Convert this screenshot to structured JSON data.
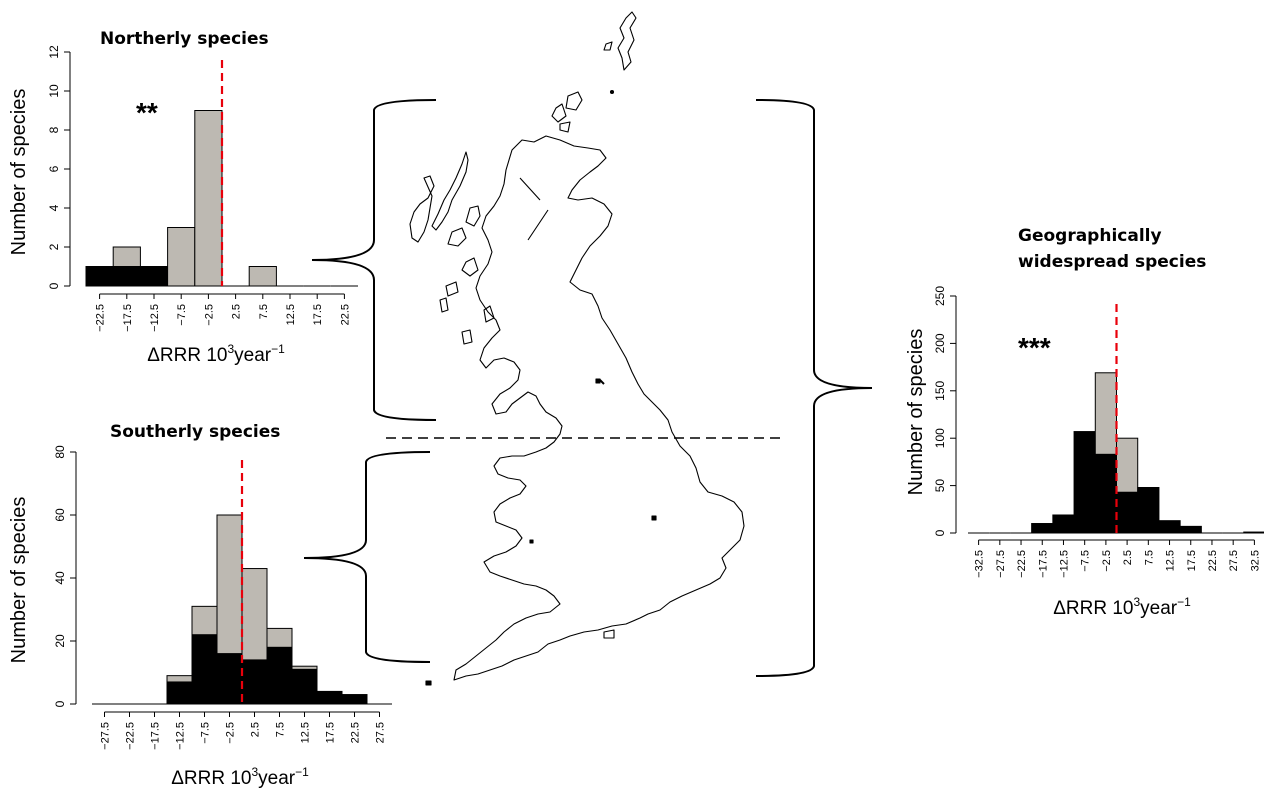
{
  "chart_data": [
    {
      "id": "northerly",
      "type": "bar",
      "title": "Northerly species",
      "ylabel": "Number of species",
      "xlabel": "ΔRRR 10",
      "xlabel_exp": "3",
      "xlabel_unit": "year",
      "xlabel_unit_exp": "−1",
      "annotation": "**",
      "xlim": [
        -25,
        25
      ],
      "ylim": [
        0,
        12
      ],
      "yticks": [
        0,
        2,
        4,
        6,
        8,
        10,
        12
      ],
      "xticks": [
        "−22.5",
        "−17.5",
        "−12.5",
        "−7.5",
        "−2.5",
        "2.5",
        "7.5",
        "12.5",
        "17.5",
        "22.5"
      ],
      "xtick_values": [
        -22.5,
        -17.5,
        -12.5,
        -7.5,
        -2.5,
        2.5,
        7.5,
        12.5,
        17.5,
        22.5
      ],
      "bin_width": 5,
      "reference_line": 0,
      "series": [
        {
          "values": [
            1,
            1,
            1,
            0,
            0,
            0,
            0,
            0,
            0,
            0
          ],
          "color": "#000000"
        },
        {
          "values": [
            0,
            1,
            0,
            3,
            9,
            0,
            1,
            0,
            0,
            0
          ],
          "color": "#bdb9b2"
        }
      ]
    },
    {
      "id": "southerly",
      "type": "bar",
      "title": "Southerly species",
      "ylabel": "Number of species",
      "xlabel": "ΔRRR 10",
      "xlabel_exp": "3",
      "xlabel_unit": "year",
      "xlabel_unit_exp": "−1",
      "annotation": "",
      "xlim": [
        -30,
        30
      ],
      "ylim": [
        0,
        80
      ],
      "yticks": [
        0,
        20,
        40,
        60,
        80
      ],
      "xticks": [
        "−27.5",
        "−22.5",
        "−17.5",
        "−12.5",
        "−7.5",
        "−2.5",
        "2.5",
        "7.5",
        "12.5",
        "17.5",
        "22.5",
        "27.5"
      ],
      "xtick_values": [
        -27.5,
        -22.5,
        -17.5,
        -12.5,
        -7.5,
        -2.5,
        2.5,
        7.5,
        12.5,
        17.5,
        22.5,
        27.5
      ],
      "bin_width": 5,
      "reference_line": 0,
      "series": [
        {
          "values": [
            0,
            0,
            0,
            7,
            22,
            16,
            14,
            18,
            11,
            4,
            3,
            0
          ],
          "color": "#000000"
        },
        {
          "values": [
            0,
            0,
            0,
            2,
            9,
            44,
            29,
            6,
            1,
            0,
            0,
            0
          ],
          "color": "#bdb9b2"
        }
      ]
    },
    {
      "id": "widespread",
      "type": "bar",
      "title": "Geographically\nwidespread species",
      "ylabel": "Number of species",
      "xlabel": "ΔRRR 10",
      "xlabel_exp": "3",
      "xlabel_unit": "year",
      "xlabel_unit_exp": "−1",
      "annotation": "***",
      "xlim": [
        -35,
        35
      ],
      "ylim": [
        0,
        250
      ],
      "yticks": [
        0,
        50,
        100,
        150,
        200,
        250
      ],
      "xticks": [
        "−32.5",
        "−27.5",
        "−22.5",
        "−17.5",
        "−12.5",
        "−7.5",
        "−2.5",
        "2.5",
        "7.5",
        "12.5",
        "17.5",
        "22.5",
        "27.5",
        "32.5"
      ],
      "xtick_values": [
        -32.5,
        -27.5,
        -22.5,
        -17.5,
        -12.5,
        -7.5,
        -2.5,
        2.5,
        7.5,
        12.5,
        17.5,
        22.5,
        27.5,
        32.5
      ],
      "bin_width": 5,
      "reference_line": 0,
      "series": [
        {
          "values": [
            0,
            0,
            0,
            10,
            19,
            107,
            83,
            43,
            48,
            13,
            7,
            0,
            0,
            1
          ],
          "color": "#000000"
        },
        {
          "values": [
            0,
            0,
            0,
            0,
            0,
            0,
            86,
            57,
            0,
            0,
            0,
            0,
            0,
            0
          ],
          "color": "#bdb9b2"
        }
      ]
    }
  ],
  "colors": {
    "reference_line": "#e8000b",
    "region_divider": "#000000"
  },
  "map": {
    "icon": "great-britain-outline-map"
  }
}
